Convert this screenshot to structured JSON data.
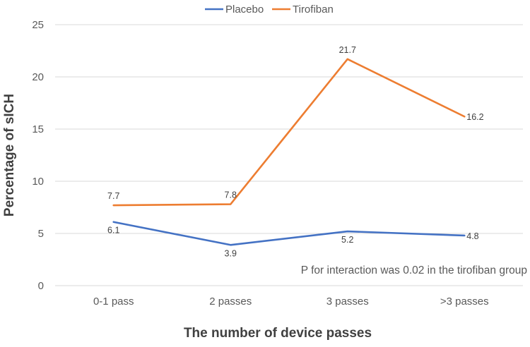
{
  "chart_data": {
    "type": "line",
    "categories": [
      "0-1 pass",
      "2 passes",
      "3 passes",
      ">3 passes"
    ],
    "series": [
      {
        "name": "Placebo",
        "values": [
          6.1,
          3.9,
          5.2,
          4.8
        ],
        "color": "#4472c4"
      },
      {
        "name": "Tirofiban",
        "values": [
          7.7,
          7.8,
          21.7,
          16.2
        ],
        "color": "#ed7d31"
      }
    ],
    "title": "",
    "xlabel": "The number of device passes",
    "ylabel": "Percentage of sICH",
    "ylim": [
      0,
      25
    ],
    "yticks": [
      0,
      5,
      10,
      15,
      20,
      25
    ],
    "grid": true,
    "legend_position": "top",
    "annotation": "P for interaction was 0.02 in the tirofiban group"
  }
}
